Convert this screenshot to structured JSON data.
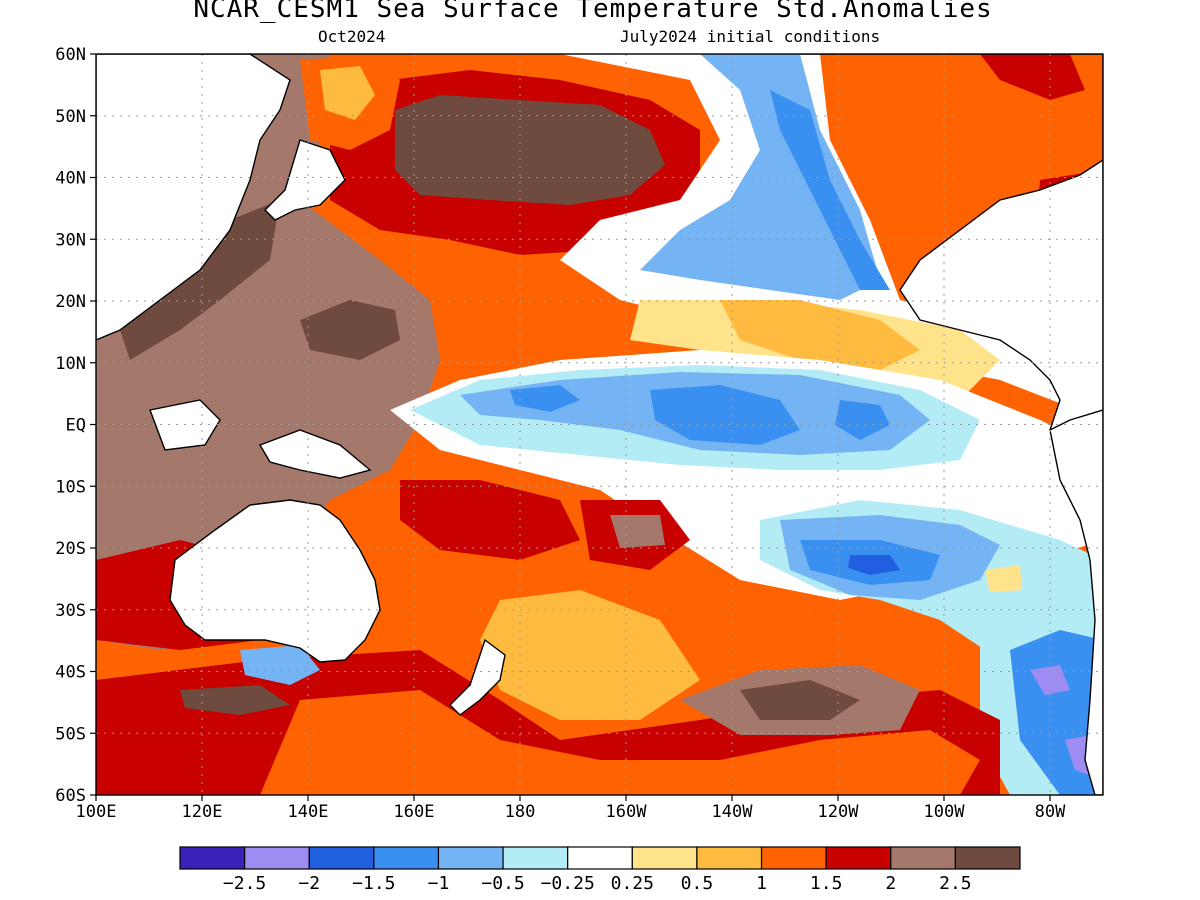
{
  "title": "NCAR_CESM1 Sea Surface Temperature Std.Anomalies",
  "subtitle_left": "Oct2024",
  "subtitle_right": "July2024 initial conditions",
  "axes": {
    "lat_labels": [
      "60N",
      "50N",
      "40N",
      "30N",
      "20N",
      "10N",
      "EQ",
      "10S",
      "20S",
      "30S",
      "40S",
      "50S",
      "60S"
    ],
    "lon_labels": [
      "100E",
      "120E",
      "140E",
      "160E",
      "180",
      "160W",
      "140W",
      "120W",
      "100W",
      "80W"
    ],
    "grid": true,
    "grid_style": "dotted"
  },
  "colorbar": {
    "colors": [
      "#3a22b8",
      "#9e8cf2",
      "#2060e0",
      "#3a90f0",
      "#74b4f4",
      "#b4ecf6",
      "#ffffff",
      "#ffe38a",
      "#ffba40",
      "#ff6200",
      "#c80000",
      "#a5786c",
      "#6e4a3f"
    ],
    "labels": [
      "-2.5",
      "-2",
      "-1.5",
      "-1",
      "-0.5",
      "-0.25",
      "0.25",
      "0.5",
      "1",
      "1.5",
      "2",
      "2.5"
    ]
  },
  "land_color": "#ffffff"
}
